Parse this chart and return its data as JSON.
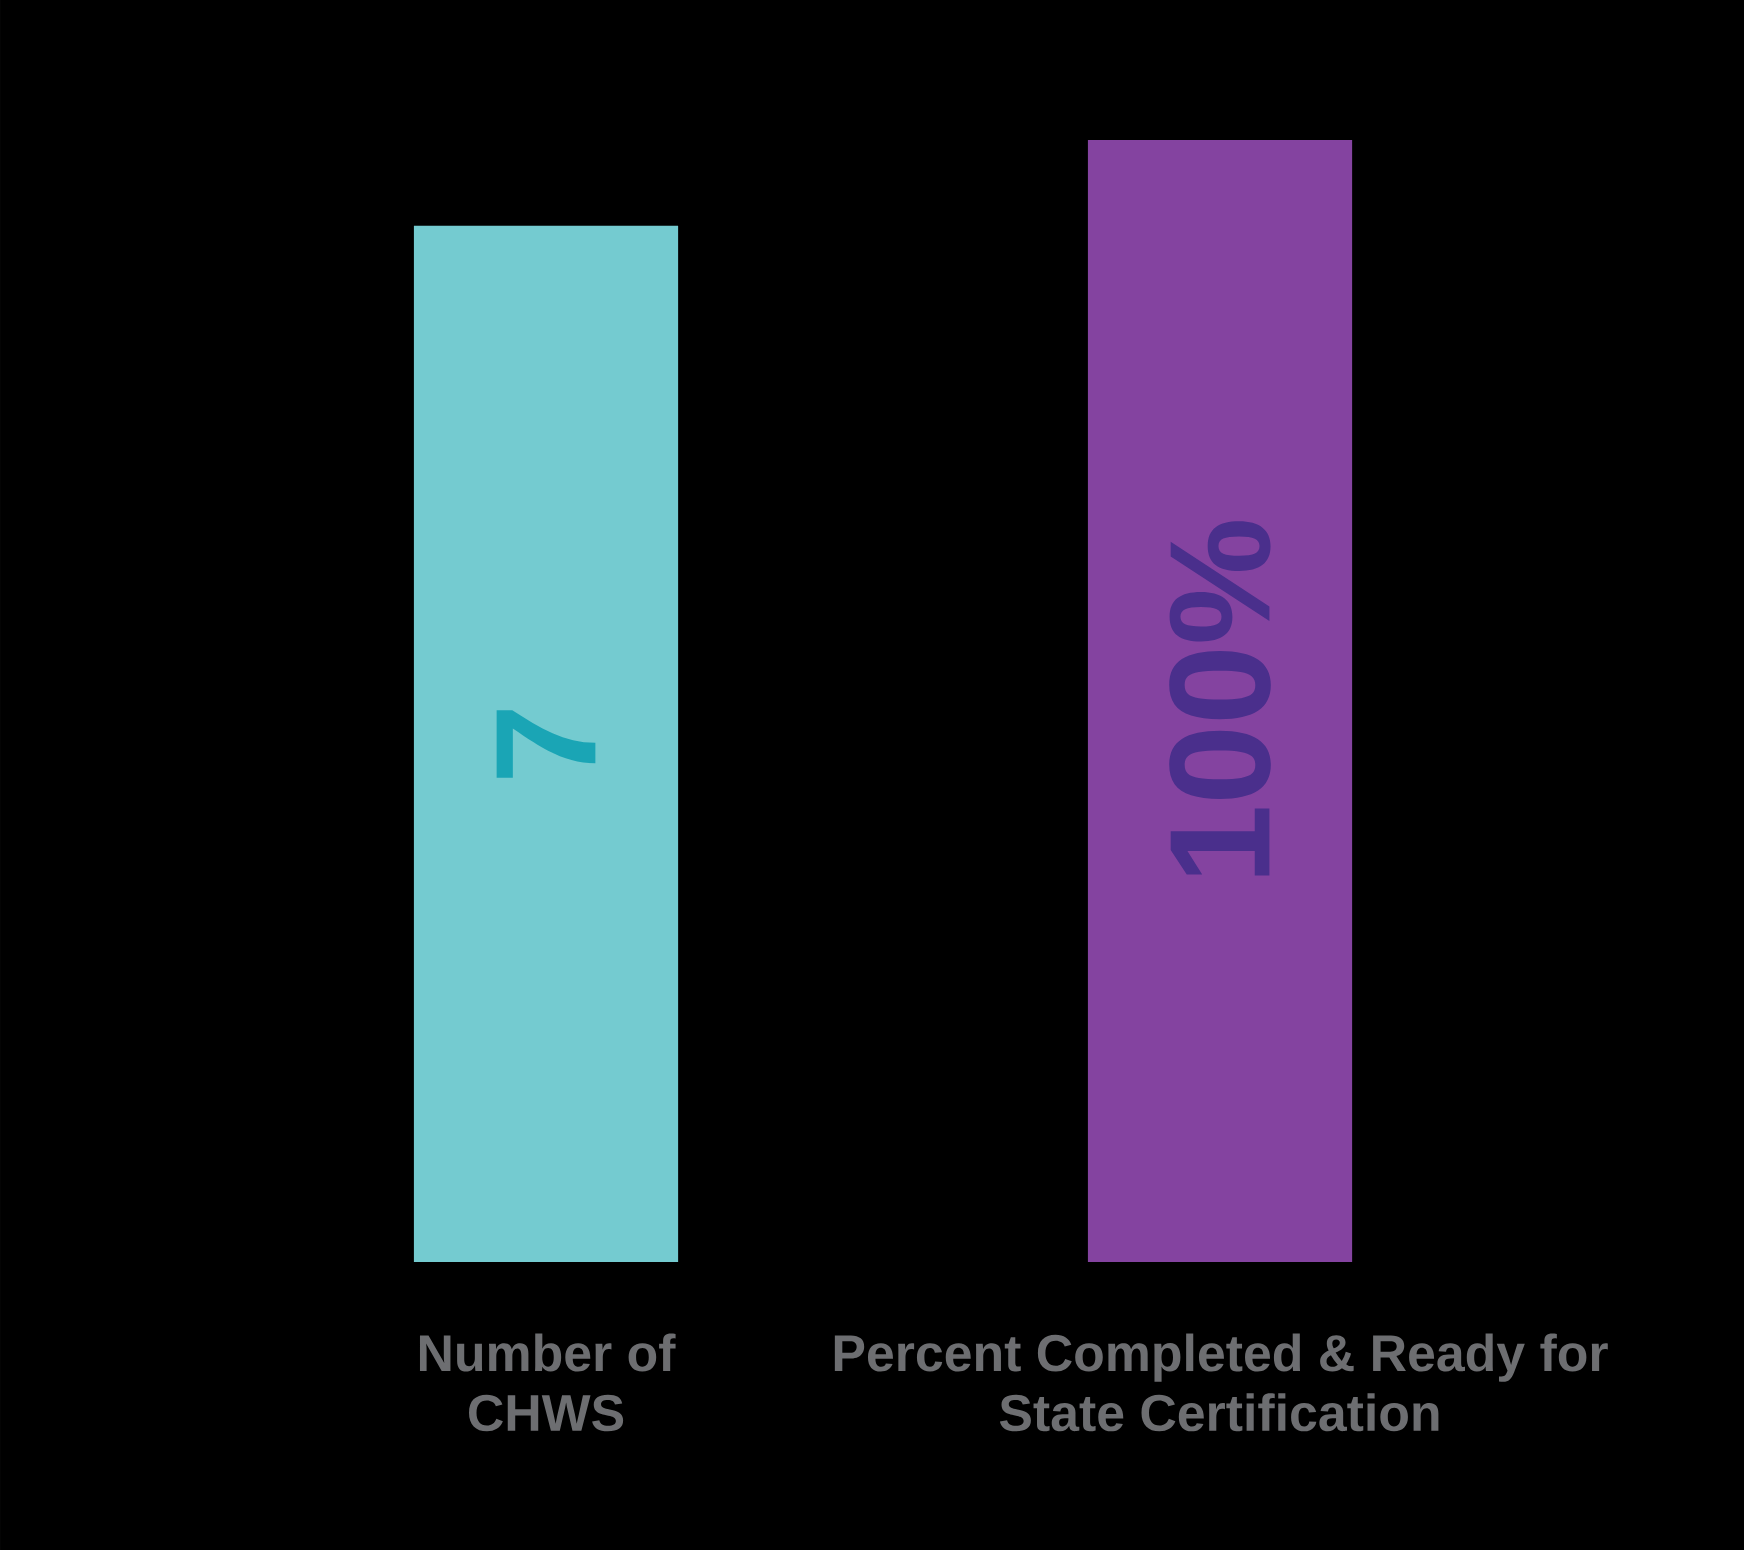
{
  "chart_data": {
    "type": "bar",
    "tick_labels": "x",
    "categories": [
      "Number of CHWS",
      "Percent Completed & Ready for State Certification"
    ],
    "ylim": [
      0,
      7.58
    ],
    "y2lim": [
      0,
      100
    ],
    "series": [
      {
        "color": "#74cbd0",
        "values": [
          7,
          null
        ],
        "value_labels": [
          "7",
          null
        ]
      },
      {
        "color": "#8443a0",
        "values": [
          null,
          100
        ],
        "value_labels": [
          null,
          "100%"
        ],
        "axis": "y2"
      }
    ]
  }
}
